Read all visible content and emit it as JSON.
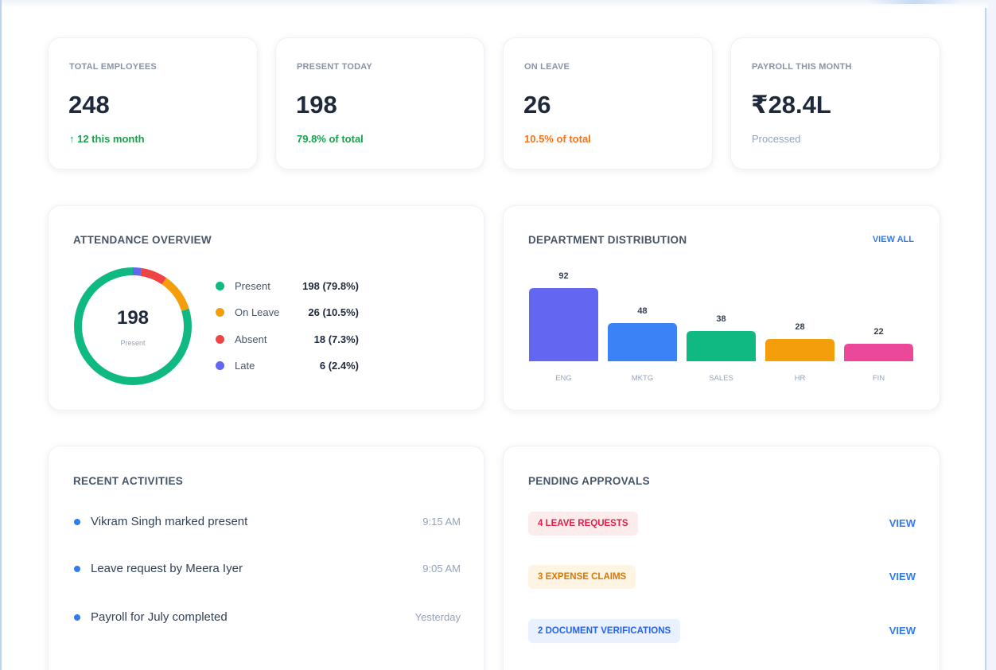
{
  "stats": [
    {
      "label": "TOTAL EMPLOYEES",
      "value": "248",
      "sub": "↑ 12 this month",
      "sub_color": "#16a34a"
    },
    {
      "label": "PRESENT TODAY",
      "value": "198",
      "sub": "79.8% of total",
      "sub_color": "#16a34a"
    },
    {
      "label": "ON LEAVE",
      "value": "26",
      "sub": "10.5% of total",
      "sub_color": "#f97316"
    },
    {
      "label": "PAYROLL THIS MONTH",
      "value": "₹28.4L",
      "sub": "Processed",
      "sub_color": "#94a3b8"
    }
  ],
  "attendance": {
    "title": "ATTENDANCE OVERVIEW",
    "center_value": "198",
    "center_label": "Present",
    "items": [
      {
        "label": "Present",
        "value": "198 (79.8%)",
        "count": 198,
        "color": "#10b981"
      },
      {
        "label": "On Leave",
        "value": "26 (10.5%)",
        "count": 26,
        "color": "#f59e0b"
      },
      {
        "label": "Absent",
        "value": "18 (7.3%)",
        "count": 18,
        "color": "#ef4444"
      },
      {
        "label": "Late",
        "value": "6 (2.4%)",
        "count": 6,
        "color": "#6366f1"
      }
    ]
  },
  "department": {
    "title": "DEPARTMENT DISTRIBUTION",
    "view_all": "VIEW ALL"
  },
  "chart_data": {
    "type": "bar",
    "categories": [
      "ENG",
      "MKTG",
      "SALES",
      "HR",
      "FIN"
    ],
    "values": [
      92,
      48,
      38,
      28,
      22
    ],
    "colors": [
      "#6366f1",
      "#3b82f6",
      "#10b981",
      "#f59e0b",
      "#ec4899"
    ],
    "title": "DEPARTMENT DISTRIBUTION",
    "xlabel": "",
    "ylabel": ""
  },
  "activities": {
    "title": "RECENT ACTIVITIES",
    "items": [
      {
        "text": "Vikram Singh marked present",
        "time": "9:15 AM"
      },
      {
        "text": "Leave request by Meera Iyer",
        "time": "9:05 AM"
      },
      {
        "text": "Payroll for July completed",
        "time": "Yesterday"
      }
    ]
  },
  "approvals": {
    "title": "PENDING APPROVALS",
    "items": [
      {
        "label": "4 LEAVE REQUESTS",
        "action": "VIEW",
        "bg": "#fdecec",
        "fg": "#e11d48"
      },
      {
        "label": "3 EXPENSE CLAIMS",
        "action": "VIEW",
        "bg": "#fdf4e3",
        "fg": "#d97706"
      },
      {
        "label": "2 DOCUMENT VERIFICATIONS",
        "action": "VIEW",
        "bg": "#e8f1fd",
        "fg": "#2563eb"
      }
    ]
  }
}
